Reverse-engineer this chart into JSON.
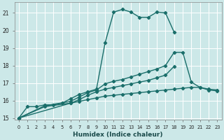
{
  "xlabel": "Humidex (Indice chaleur)",
  "bg_color": "#cce8e8",
  "grid_color": "#b0d8d8",
  "line_color": "#1a6e6a",
  "xlim": [
    -0.5,
    23.5
  ],
  "ylim": [
    14.9,
    21.6
  ],
  "yticks": [
    15,
    16,
    17,
    18,
    19,
    20,
    21
  ],
  "xticks": [
    0,
    1,
    2,
    3,
    4,
    5,
    6,
    7,
    8,
    9,
    10,
    11,
    12,
    13,
    14,
    15,
    16,
    17,
    18,
    19,
    20,
    21,
    22,
    23
  ],
  "series": [
    {
      "x": [
        0,
        1,
        2,
        3,
        4,
        5,
        6,
        7,
        8,
        9,
        10,
        11,
        12,
        13,
        14,
        15,
        16,
        17,
        18
      ],
      "y": [
        15.0,
        15.65,
        15.65,
        15.75,
        15.75,
        15.85,
        16.1,
        16.35,
        16.5,
        16.65,
        19.3,
        21.05,
        21.2,
        21.05,
        20.75,
        20.75,
        21.05,
        21.0,
        19.9
      ]
    },
    {
      "x": [
        0,
        3,
        6,
        7,
        8,
        9,
        10,
        11,
        12,
        13,
        14,
        15,
        16,
        17,
        18,
        19,
        20,
        21,
        22,
        23
      ],
      "y": [
        15.0,
        15.7,
        15.95,
        16.2,
        16.45,
        16.6,
        16.95,
        17.1,
        17.2,
        17.35,
        17.5,
        17.65,
        17.8,
        18.0,
        18.75,
        18.75,
        17.05,
        16.75,
        16.6,
        16.55
      ]
    },
    {
      "x": [
        0,
        3,
        6,
        7,
        8,
        9,
        10,
        11,
        12,
        13,
        14,
        15,
        16,
        17,
        18
      ],
      "y": [
        15.0,
        15.65,
        15.85,
        16.05,
        16.3,
        16.5,
        16.65,
        16.75,
        16.85,
        16.95,
        17.05,
        17.15,
        17.3,
        17.45,
        17.95
      ]
    },
    {
      "x": [
        0,
        6,
        7,
        8,
        9,
        10,
        11,
        12,
        13,
        14,
        15,
        16,
        17,
        18,
        19,
        20,
        21,
        22,
        23
      ],
      "y": [
        15.0,
        15.85,
        15.95,
        16.05,
        16.15,
        16.25,
        16.3,
        16.35,
        16.4,
        16.45,
        16.5,
        16.55,
        16.6,
        16.65,
        16.7,
        16.75,
        16.75,
        16.65,
        16.6
      ]
    }
  ]
}
